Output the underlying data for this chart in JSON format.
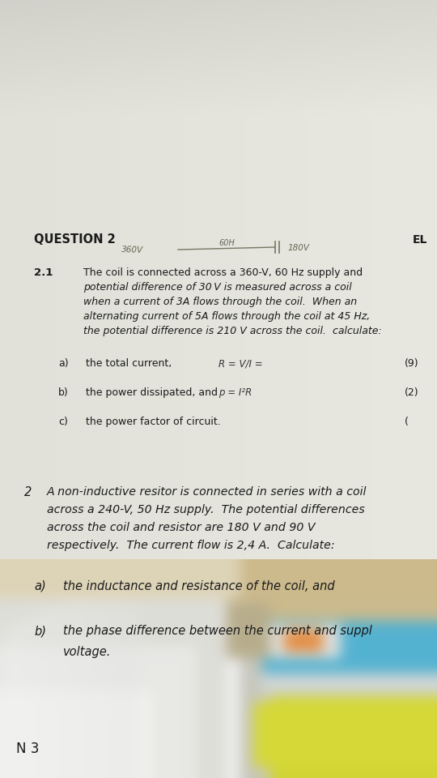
{
  "title": "QUESTION 2",
  "el_text": "EL",
  "q21_label": "2.1",
  "q21_text_lines": [
    "The coil is connected across a 360-V, 60 Hz supply and",
    "potential difference of 30 V is measured across a coil",
    "when a current of 3A flows through the coil.  When an",
    "alternating current of 5A flows through the coil at 45 Hz,",
    "the potential difference is 210 V across the coil.  calculate:"
  ],
  "sub_items_21": [
    {
      "label": "a)",
      "text": "the total current,",
      "note": "R = V/I =",
      "mark": "(9)"
    },
    {
      "label": "b)",
      "text": "the power dissipated, and",
      "note": "p = I²R",
      "mark": "(2)"
    },
    {
      "label": "c)",
      "text": "the power factor of circuit.",
      "note": "",
      "mark": "("
    }
  ],
  "q2_label": "2",
  "q2_text_lines": [
    "A non-inductive resitor is connected in series with a coil",
    "across a 240-V, 50 Hz supply.  The potential differences",
    "across the coil and resistor are 180 V and 90 V",
    "respectively.  The current flow is 2,4 A.  Calculate:"
  ],
  "sub_items_2": [
    {
      "label": "a)",
      "text": "the inductance and resistance of the coil, and"
    },
    {
      "label": "b)",
      "text": "the phase difference between the current and suppl\nvoltage."
    }
  ],
  "footer_text": "N 3",
  "paper_color": "#e8e8e2",
  "text_color": "#1a1a1a",
  "bg_left_color": "#c8c8c0",
  "bg_right_top_color": "#d4d430",
  "bg_right_mid_color": "#58b8d4",
  "bg_right_cream_color": "#d0c090",
  "bg_center_paper_color": "#dcdcd4",
  "bg_book_spine_color": "#c8b880"
}
